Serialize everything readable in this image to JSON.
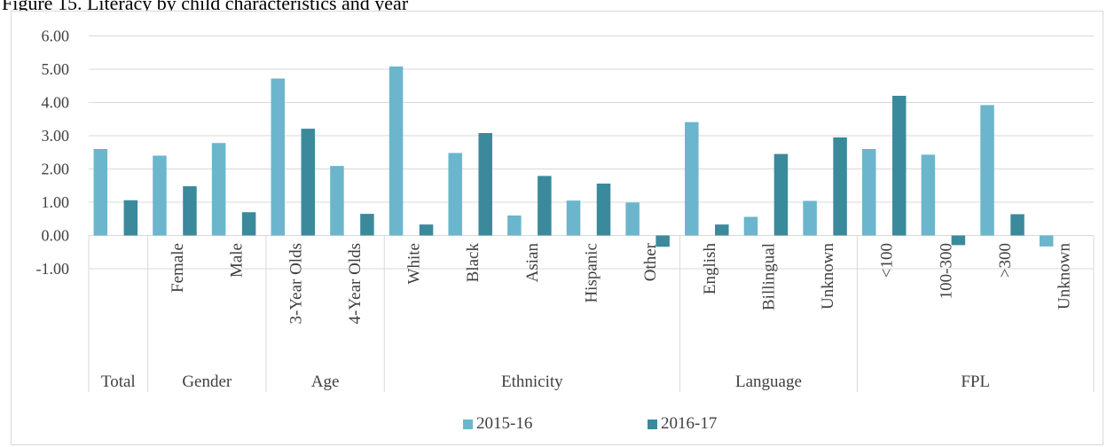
{
  "figure_title": "Figure 15. Literacy by child characteristics and year",
  "colors": {
    "series_2015_16": "#6bb6cc",
    "series_2016_17": "#3b8a9c",
    "grid": "#d9d9d9",
    "text": "#404040"
  },
  "chart_data": {
    "type": "bar",
    "title": "",
    "ylim": [
      -1,
      6
    ],
    "yticks": [
      "6.00",
      "5.00",
      "4.00",
      "3.00",
      "2.00",
      "1.00",
      "0.00",
      "-1.00"
    ],
    "grid": true,
    "legend_position": "bottom",
    "groups": [
      {
        "label": "Total",
        "categories": [
          ""
        ]
      },
      {
        "label": "Gender",
        "categories": [
          "Female",
          "Male"
        ]
      },
      {
        "label": "Age",
        "categories": [
          "3-Year Olds",
          "4-Year Olds"
        ]
      },
      {
        "label": "Ethnicity",
        "categories": [
          "White",
          "Black",
          "Asian",
          "Hispanic",
          "Other"
        ]
      },
      {
        "label": "Language",
        "categories": [
          "English",
          "Billingual",
          "Unknown"
        ]
      },
      {
        "label": "FPL",
        "categories": [
          "<100",
          "100-300",
          ">300",
          "Unknown"
        ]
      }
    ],
    "series": [
      {
        "name": "2015-16",
        "values": [
          2.6,
          2.4,
          2.78,
          4.72,
          2.09,
          5.08,
          2.48,
          0.6,
          1.05,
          0.99,
          3.41,
          0.56,
          1.04,
          2.6,
          2.43,
          3.92,
          -0.33
        ]
      },
      {
        "name": "2016-17",
        "values": [
          1.06,
          1.48,
          0.7,
          3.21,
          0.65,
          0.33,
          3.08,
          1.79,
          1.56,
          -0.34,
          0.33,
          2.45,
          2.95,
          4.2,
          -0.29,
          0.64,
          null
        ]
      }
    ]
  }
}
